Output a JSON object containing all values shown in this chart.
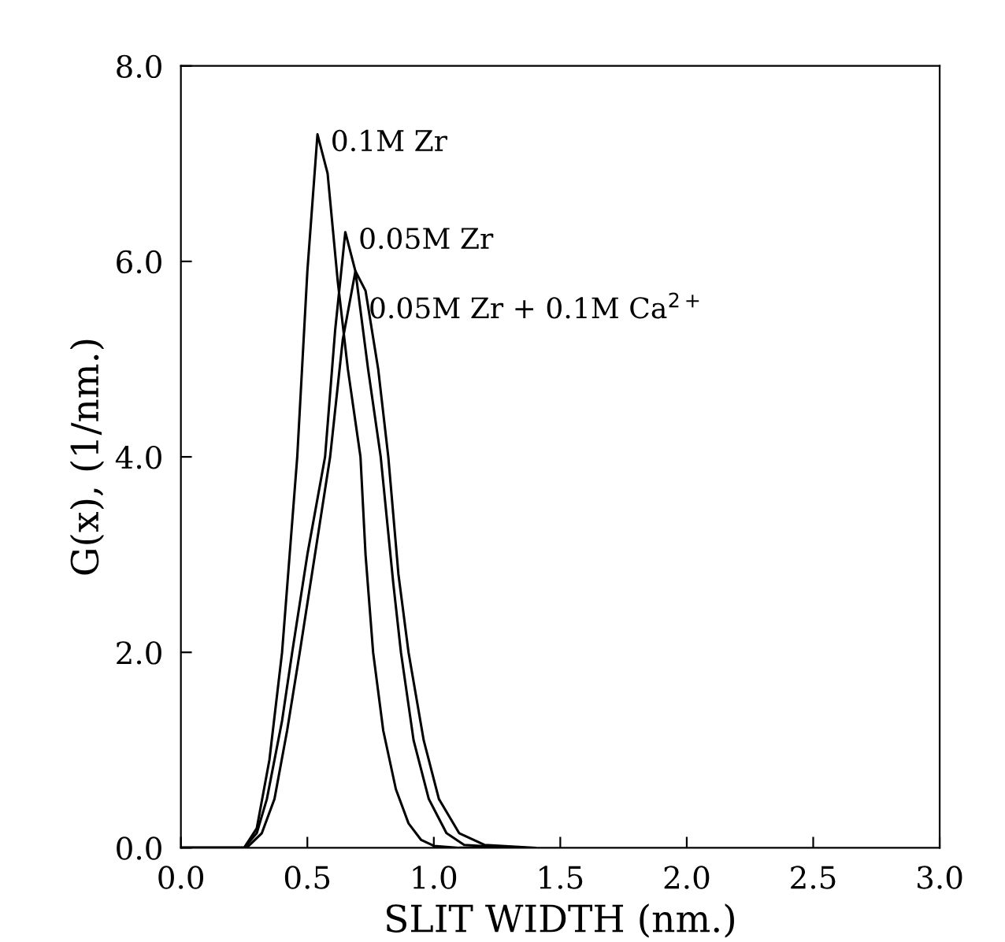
{
  "chart_data": {
    "type": "line",
    "xlabel": "SLIT WIDTH (nm.)",
    "ylabel": "G(x), (1/nm.)",
    "xlim": [
      0.0,
      3.0
    ],
    "xticks": [
      {
        "value": 0,
        "label": "0.0"
      },
      0.5,
      {
        "value": 1,
        "label": "1.0"
      },
      1.5,
      {
        "value": 2,
        "label": "2.0"
      },
      2.5,
      {
        "value": 3,
        "label": "3.0"
      }
    ],
    "ylim": [
      0.0,
      8.0
    ],
    "yticks": [
      {
        "value": 0,
        "label": "0.0"
      },
      {
        "value": 2,
        "label": "2.0"
      },
      {
        "value": 4,
        "label": "4.0"
      },
      {
        "value": 6,
        "label": "6.0"
      },
      {
        "value": 8,
        "label": "8.0"
      }
    ],
    "grid": false,
    "marker": "none",
    "line_style": "solid",
    "series": [
      {
        "color": "#000000",
        "x": [
          0.0,
          0.25,
          0.3,
          0.35,
          0.4,
          0.46,
          0.5,
          0.54,
          0.58,
          0.62,
          0.66,
          0.71,
          0.73,
          0.76,
          0.8,
          0.85,
          0.9,
          0.95,
          1.0,
          1.1,
          1.3
        ],
        "values": [
          0,
          0,
          0.2,
          0.9,
          2.0,
          4.0,
          5.9,
          7.3,
          6.9,
          5.8,
          4.9,
          4.0,
          3.0,
          2.0,
          1.2,
          0.6,
          0.25,
          0.08,
          0.02,
          0,
          0
        ]
      },
      {
        "color": "#000000",
        "x": [
          0.0,
          0.25,
          0.3,
          0.34,
          0.4,
          0.44,
          0.5,
          0.57,
          0.61,
          0.65,
          0.69,
          0.74,
          0.79,
          0.84,
          0.87,
          0.92,
          0.98,
          1.05,
          1.12,
          1.3
        ],
        "values": [
          0,
          0,
          0.15,
          0.5,
          1.3,
          2.0,
          3.0,
          4.0,
          5.3,
          6.3,
          5.9,
          4.9,
          4.0,
          2.7,
          2.0,
          1.1,
          0.5,
          0.15,
          0.03,
          0
        ]
      },
      {
        "color": "#000000",
        "x": [
          0.0,
          0.26,
          0.32,
          0.37,
          0.42,
          0.47,
          0.53,
          0.59,
          0.64,
          0.69,
          0.73,
          0.78,
          0.82,
          0.86,
          0.9,
          0.96,
          1.02,
          1.1,
          1.2,
          1.4
        ],
        "values": [
          0,
          0,
          0.15,
          0.5,
          1.2,
          2.0,
          3.0,
          4.0,
          5.2,
          5.9,
          5.7,
          4.9,
          4.0,
          2.8,
          2.0,
          1.1,
          0.5,
          0.15,
          0.03,
          0
        ]
      }
    ],
    "annotations": [
      {
        "text": "0.1M Zr",
        "x": 0.54,
        "y": 7.3
      },
      {
        "text": "0.05M Zr",
        "x": 0.65,
        "y": 6.3
      },
      {
        "text": "0.05M Zr + 0.1M Ca$^{2+}$",
        "x": 0.69,
        "y": 5.9
      }
    ]
  }
}
